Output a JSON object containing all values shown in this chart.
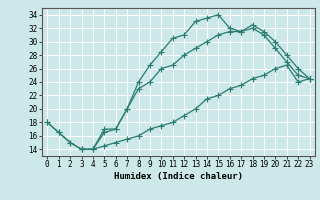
{
  "xlabel": "Humidex (Indice chaleur)",
  "background_color": "#cce8e8",
  "grid_color": "#ffffff",
  "line_color": "#2a7d6f",
  "xlim": [
    -0.5,
    23.5
  ],
  "ylim": [
    13,
    35
  ],
  "yticks": [
    14,
    16,
    18,
    20,
    22,
    24,
    26,
    28,
    30,
    32,
    34
  ],
  "xticks": [
    0,
    1,
    2,
    3,
    4,
    5,
    6,
    7,
    8,
    9,
    10,
    11,
    12,
    13,
    14,
    15,
    16,
    17,
    18,
    19,
    20,
    21,
    22,
    23
  ],
  "curve1_x": [
    0,
    1,
    2,
    3,
    4,
    5,
    6,
    7,
    8,
    9,
    10,
    11,
    12,
    13,
    14,
    15,
    16,
    17,
    18,
    19,
    20,
    21,
    22,
    23
  ],
  "curve1_y": [
    18,
    16.5,
    15,
    14,
    14,
    17,
    17,
    20,
    24,
    26.5,
    28.5,
    30.5,
    31,
    33,
    33.5,
    34,
    32,
    31.5,
    32,
    31,
    29,
    27,
    25,
    24.5
  ],
  "curve2_x": [
    0,
    1,
    2,
    3,
    4,
    5,
    6,
    7,
    8,
    9,
    10,
    11,
    12,
    13,
    14,
    15,
    16,
    17,
    18,
    19,
    20,
    21,
    22,
    23
  ],
  "curve2_y": [
    18,
    16.5,
    15,
    14,
    14,
    16.5,
    17,
    20,
    23,
    24,
    26,
    26.5,
    28,
    29,
    30,
    31,
    31.5,
    31.5,
    32.5,
    31.5,
    30,
    28,
    26,
    24.5
  ],
  "curve3_x": [
    3,
    4,
    5,
    6,
    7,
    8,
    9,
    10,
    11,
    12,
    13,
    14,
    15,
    16,
    17,
    18,
    19,
    20,
    21,
    22,
    23
  ],
  "curve3_y": [
    14,
    14,
    14.5,
    15,
    15.5,
    16,
    17,
    17.5,
    18,
    19,
    20,
    21.5,
    22,
    23,
    23.5,
    24.5,
    25,
    26,
    26.5,
    24,
    24.5
  ],
  "tick_fontsize": 5.5,
  "xlabel_fontsize": 6.5
}
